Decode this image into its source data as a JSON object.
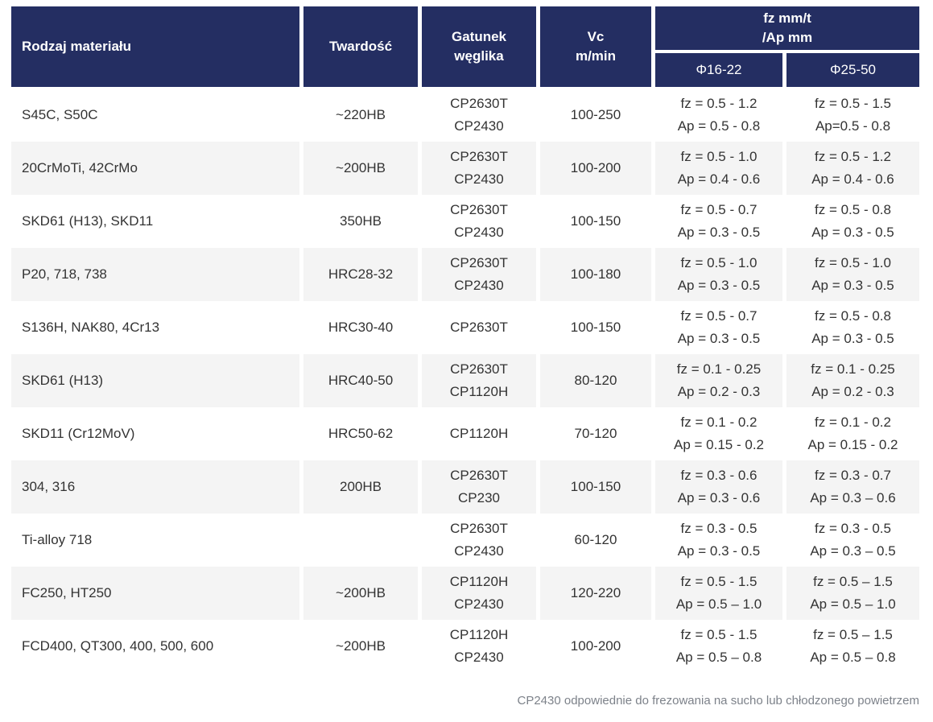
{
  "colors": {
    "header_bg": "#242e62",
    "header_text": "#ffffff",
    "stripe_bg": "#f4f4f4",
    "body_text": "#333333",
    "note_text": "#7d828a"
  },
  "table": {
    "header": {
      "material": "Rodzaj materiału",
      "hardness": "Twardość",
      "grade": [
        "Gatunek",
        "węglika"
      ],
      "vc": [
        "Vc",
        "m/min"
      ],
      "fz_group": [
        "fz mm/t",
        "/Ap mm"
      ],
      "dia_16_22": "Φ16-22",
      "dia_25_50": "Φ25-50"
    },
    "rows": [
      {
        "material": "S45C, S50C",
        "hardness": "~220HB",
        "grade": [
          "CP2630T",
          "CP2430"
        ],
        "vc": "100-250",
        "d16": [
          "fz = 0.5 - 1.2",
          "Ap = 0.5 - 0.8"
        ],
        "d25": [
          "fz = 0.5 - 1.5",
          "Ap=0.5 - 0.8"
        ]
      },
      {
        "material": "20CrMoTi, 42CrMo",
        "hardness": "~200HB",
        "grade": [
          "CP2630T",
          "CP2430"
        ],
        "vc": "100-200",
        "d16": [
          "fz = 0.5 - 1.0",
          "Ap = 0.4 - 0.6"
        ],
        "d25": [
          "fz = 0.5 - 1.2",
          "Ap = 0.4 - 0.6"
        ]
      },
      {
        "material": "SKD61 (H13), SKD11",
        "hardness": "350HB",
        "grade": [
          "CP2630T",
          "CP2430"
        ],
        "vc": "100-150",
        "d16": [
          "fz = 0.5 - 0.7",
          "Ap = 0.3 - 0.5"
        ],
        "d25": [
          "fz = 0.5 - 0.8",
          "Ap = 0.3 - 0.5"
        ]
      },
      {
        "material": "P20, 718, 738",
        "hardness": "HRC28-32",
        "grade": [
          "CP2630T",
          "CP2430"
        ],
        "vc": "100-180",
        "d16": [
          "fz = 0.5 - 1.0",
          "Ap = 0.3 - 0.5"
        ],
        "d25": [
          "fz = 0.5 - 1.0",
          "Ap = 0.3 - 0.5"
        ]
      },
      {
        "material": "S136H, NAK80, 4Cr13",
        "hardness": "HRC30-40",
        "grade": [
          "CP2630T"
        ],
        "vc": "100-150",
        "d16": [
          "fz = 0.5 - 0.7",
          "Ap = 0.3 - 0.5"
        ],
        "d25": [
          "fz = 0.5 - 0.8",
          "Ap = 0.3 - 0.5"
        ]
      },
      {
        "material": "SKD61 (H13)",
        "hardness": "HRC40-50",
        "grade": [
          "CP2630T",
          "CP1120H"
        ],
        "vc": "80-120",
        "d16": [
          "fz = 0.1 - 0.25",
          "Ap = 0.2 - 0.3"
        ],
        "d25": [
          "fz = 0.1 - 0.25",
          "Ap = 0.2 - 0.3"
        ]
      },
      {
        "material": "SKD11 (Cr12MoV)",
        "hardness": "HRC50-62",
        "grade": [
          "CP1120H"
        ],
        "vc": "70-120",
        "d16": [
          "fz = 0.1 - 0.2",
          "Ap = 0.15 - 0.2"
        ],
        "d25": [
          "fz = 0.1 - 0.2",
          "Ap = 0.15 - 0.2"
        ]
      },
      {
        "material": "304, 316",
        "hardness": "200HB",
        "grade": [
          "CP2630T",
          "CP230"
        ],
        "vc": "100-150",
        "d16": [
          "fz = 0.3 - 0.6",
          "Ap = 0.3 - 0.6"
        ],
        "d25": [
          "fz = 0.3 - 0.7",
          "Ap = 0.3 – 0.6"
        ]
      },
      {
        "material": "Ti-alloy 718",
        "hardness": "",
        "grade": [
          "CP2630T",
          "CP2430"
        ],
        "vc": "60-120",
        "d16": [
          "fz = 0.3 - 0.5",
          "Ap = 0.3 - 0.5"
        ],
        "d25": [
          "fz = 0.3 - 0.5",
          "Ap = 0.3 – 0.5"
        ]
      },
      {
        "material": "FC250, HT250",
        "hardness": "~200HB",
        "grade": [
          "CP1120H",
          "CP2430"
        ],
        "vc": "120-220",
        "d16": [
          "fz = 0.5 - 1.5",
          "Ap = 0.5 – 1.0"
        ],
        "d25": [
          "fz = 0.5 – 1.5",
          "Ap = 0.5 – 1.0"
        ]
      },
      {
        "material": "FCD400, QT300, 400, 500, 600",
        "hardness": "~200HB",
        "grade": [
          "CP1120H",
          "CP2430"
        ],
        "vc": "100-200",
        "d16": [
          "fz = 0.5 - 1.5",
          "Ap = 0.5 – 0.8"
        ],
        "d25": [
          "fz = 0.5 – 1.5",
          "Ap = 0.5 – 0.8"
        ]
      }
    ]
  },
  "footnote": "CP2430 odpowiednie do frezowania na sucho lub chłodzonego powietrzem"
}
